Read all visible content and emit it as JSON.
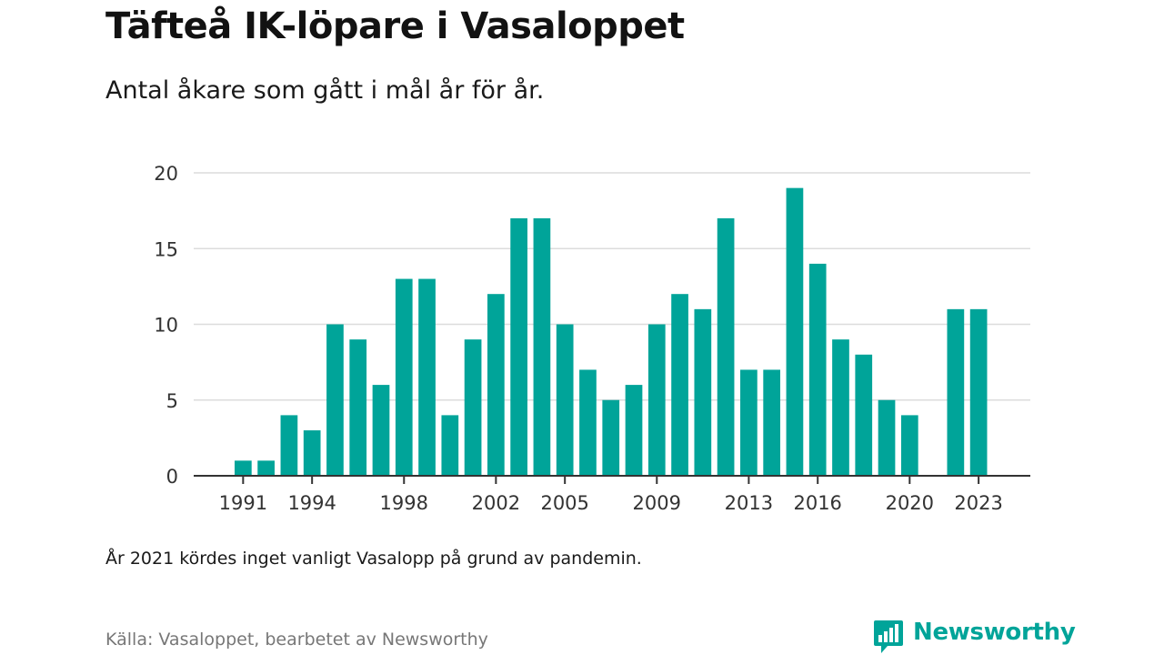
{
  "title": "Täfteå IK-löpare i Vasaloppet",
  "subtitle": "Antal åkare som gått i mål år för år.",
  "note": "År 2021 kördes inget vanligt Vasalopp på grund av pandemin.",
  "source": "Källa: Vasaloppet, bearbetet av Newsworthy",
  "brand": {
    "name": "Newsworthy",
    "color": "#00a499",
    "icon": "bar-chart-speech-bubble-icon"
  },
  "chart_data": {
    "type": "bar",
    "x": [
      1991,
      1992,
      1993,
      1994,
      1995,
      1996,
      1997,
      1998,
      1999,
      2000,
      2001,
      2002,
      2003,
      2004,
      2005,
      2006,
      2007,
      2008,
      2009,
      2010,
      2011,
      2012,
      2013,
      2014,
      2015,
      2016,
      2017,
      2018,
      2019,
      2020,
      2021,
      2022,
      2023
    ],
    "values": [
      1,
      1,
      4,
      3,
      10,
      9,
      6,
      13,
      13,
      4,
      9,
      12,
      17,
      17,
      10,
      7,
      5,
      6,
      10,
      12,
      11,
      17,
      7,
      7,
      19,
      14,
      9,
      8,
      5,
      4,
      0,
      11,
      11
    ],
    "x_tick_labels": [
      "1991",
      "1994",
      "1998",
      "2002",
      "2005",
      "2009",
      "2013",
      "2016",
      "2020",
      "2023"
    ],
    "y_ticks": [
      0,
      5,
      10,
      15,
      20
    ],
    "ylim": [
      0,
      20
    ],
    "grid": true,
    "bar_color": "#00a499",
    "grid_color": "#dcdcdc",
    "axis_color": "#333333"
  }
}
